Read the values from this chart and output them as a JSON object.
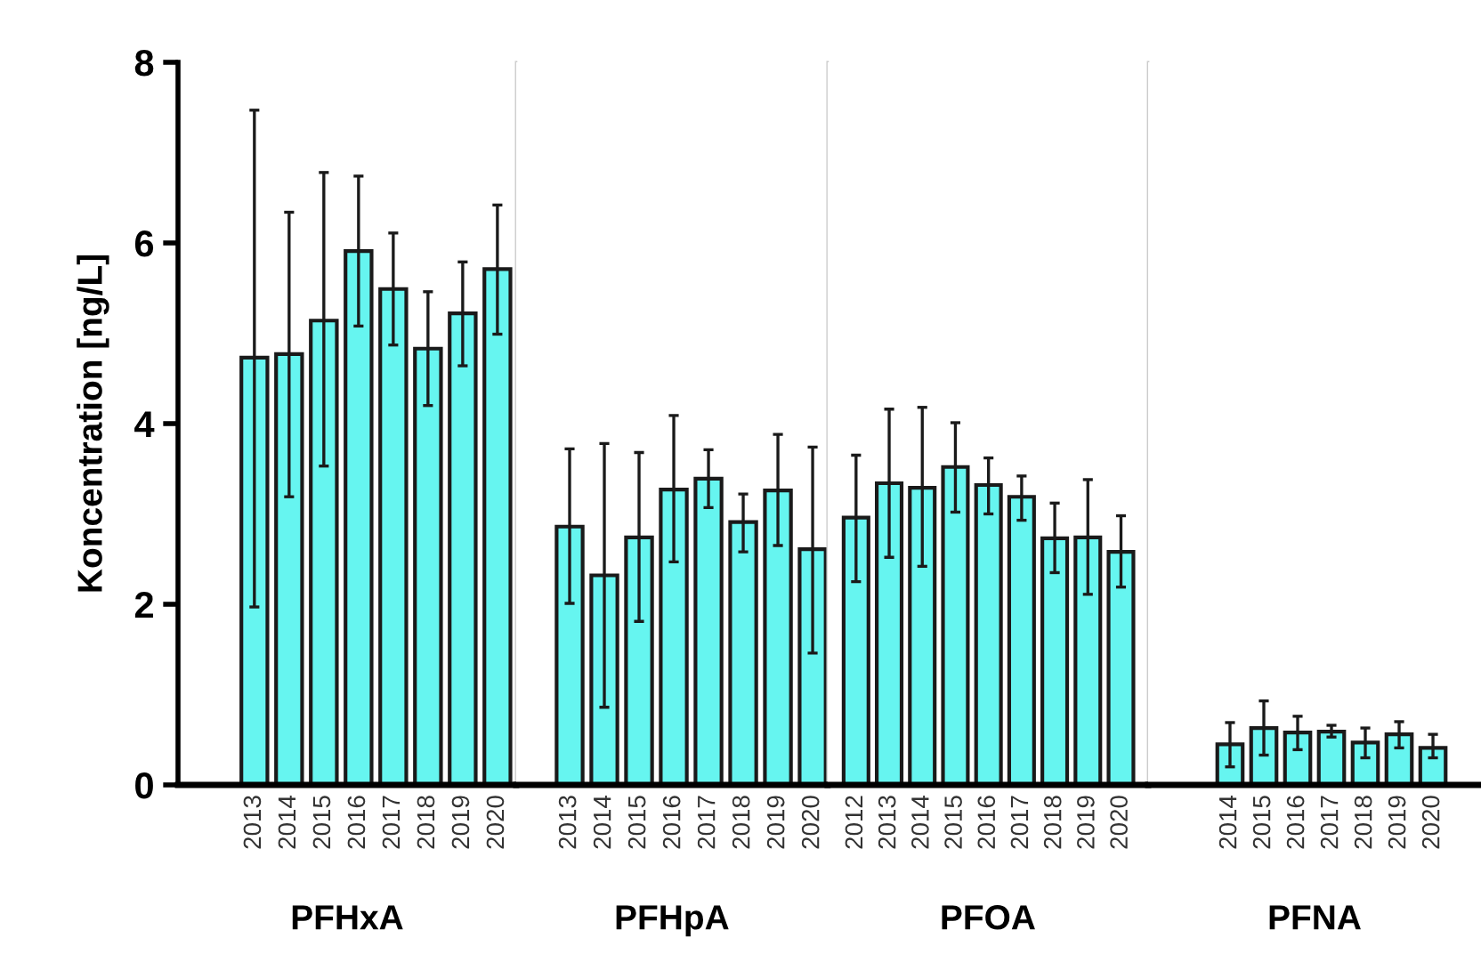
{
  "chart_data": [
    {
      "type": "bar",
      "xlabel": "PFHxA",
      "ylabel": "Koncentration [ng/L]",
      "categories": [
        "2013",
        "2014",
        "2015",
        "2016",
        "2017",
        "2018",
        "2019",
        "2020"
      ],
      "ylim": [
        0,
        8
      ],
      "yticks": [
        0,
        2,
        4,
        6,
        8
      ],
      "color": "#66f5f0",
      "grid": false,
      "legend": false,
      "values": [
        4.73,
        4.77,
        5.14,
        5.91,
        5.49,
        4.83,
        5.22,
        5.71
      ],
      "errors": [
        [
          1.97,
          7.47
        ],
        [
          3.19,
          6.34
        ],
        [
          3.53,
          6.78
        ],
        [
          5.08,
          6.74
        ],
        [
          4.87,
          6.11
        ],
        [
          4.2,
          5.46
        ],
        [
          4.64,
          5.79
        ],
        [
          4.99,
          6.42
        ]
      ]
    },
    {
      "type": "bar",
      "xlabel": "PFHpA",
      "categories": [
        "2013",
        "2014",
        "2015",
        "2016",
        "2017",
        "2018",
        "2019",
        "2020"
      ],
      "ylim": [
        0,
        8
      ],
      "tick_labels": "x",
      "color": "#66f5f0",
      "grid": false,
      "legend": false,
      "values": [
        2.86,
        2.32,
        2.74,
        3.27,
        3.39,
        2.91,
        3.26,
        2.61
      ],
      "errors": [
        [
          2.01,
          3.72
        ],
        [
          0.86,
          3.78
        ],
        [
          1.81,
          3.68
        ],
        [
          2.47,
          4.09
        ],
        [
          3.07,
          3.71
        ],
        [
          2.58,
          3.22
        ],
        [
          2.65,
          3.88
        ],
        [
          1.46,
          3.74
        ]
      ]
    },
    {
      "type": "bar",
      "xlabel": "PFOA",
      "categories": [
        "2012",
        "2013",
        "2014",
        "2015",
        "2016",
        "2017",
        "2018",
        "2019",
        "2020"
      ],
      "ylim": [
        0,
        8
      ],
      "tick_labels": "x",
      "color": "#66f5f0",
      "grid": false,
      "legend": false,
      "values": [
        2.96,
        3.34,
        3.29,
        3.52,
        3.32,
        3.19,
        2.73,
        2.74,
        2.58
      ],
      "errors": [
        [
          2.25,
          3.65
        ],
        [
          2.52,
          4.16
        ],
        [
          2.42,
          4.18
        ],
        [
          3.02,
          4.01
        ],
        [
          3.0,
          3.62
        ],
        [
          2.93,
          3.42
        ],
        [
          2.35,
          3.12
        ],
        [
          2.11,
          3.38
        ],
        [
          2.19,
          2.98
        ]
      ]
    },
    {
      "type": "bar",
      "xlabel": "PFNA",
      "categories": [
        "2014",
        "2015",
        "2016",
        "2017",
        "2018",
        "2019",
        "2020"
      ],
      "ylim": [
        0,
        8
      ],
      "tick_labels": "x",
      "color": "#66f5f0",
      "grid": false,
      "legend": false,
      "values": [
        0.45,
        0.63,
        0.58,
        0.59,
        0.47,
        0.56,
        0.41
      ],
      "errors": [
        [
          0.2,
          0.69
        ],
        [
          0.33,
          0.93
        ],
        [
          0.39,
          0.76
        ],
        [
          0.53,
          0.66
        ],
        [
          0.3,
          0.63
        ],
        [
          0.41,
          0.7
        ],
        [
          0.3,
          0.56
        ]
      ]
    }
  ]
}
